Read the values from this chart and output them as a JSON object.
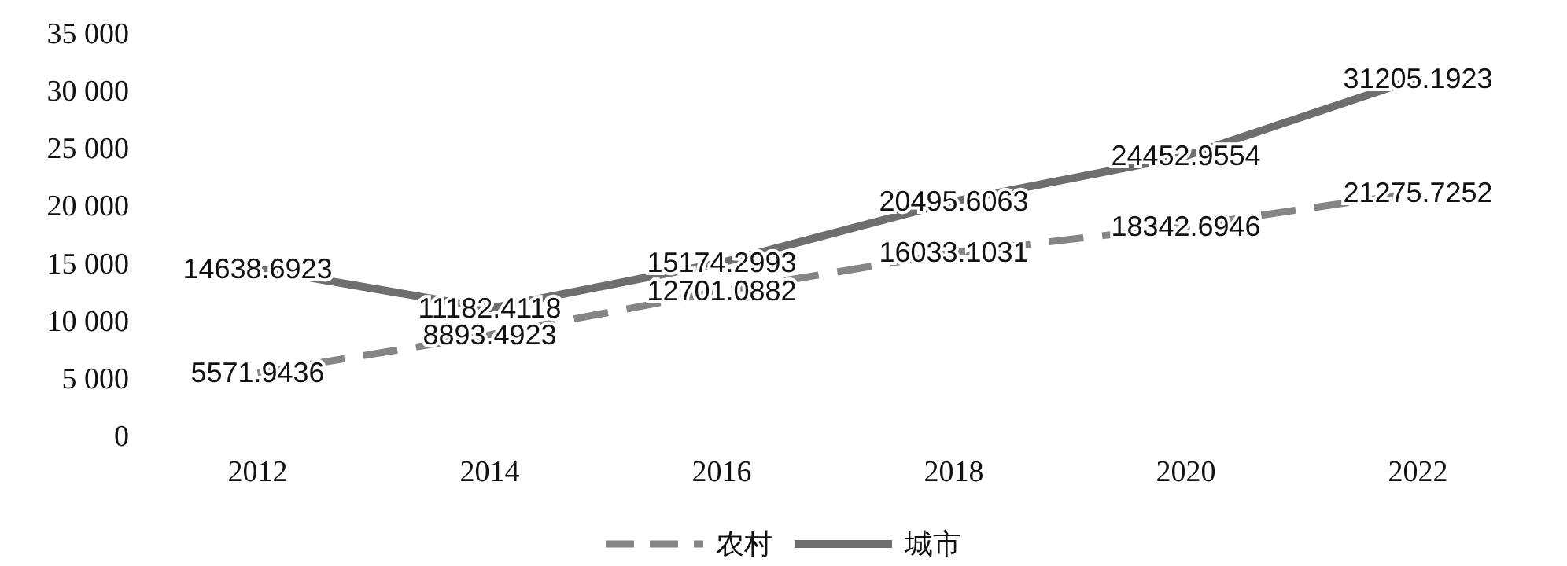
{
  "chart_data": {
    "type": "line",
    "categories": [
      "2012",
      "2014",
      "2016",
      "2018",
      "2020",
      "2022"
    ],
    "series": [
      {
        "name": "农村",
        "color": "#858585",
        "line_style": "dashed",
        "values": [
          5571.9436,
          8893.4923,
          12701.0882,
          16033.1031,
          18342.6946,
          21275.7252
        ]
      },
      {
        "name": "城市",
        "color": "#6e6e6e",
        "line_style": "solid",
        "values": [
          14638.6923,
          11182.4118,
          15174.2993,
          20495.6063,
          24452.9554,
          31205.1923
        ]
      }
    ],
    "ylim": [
      0,
      35000
    ],
    "yticks": [
      0,
      {
        "value": 5000,
        "label": "5 000"
      },
      {
        "value": 10000,
        "label": "10 000"
      },
      {
        "value": 15000,
        "label": "15 000"
      },
      {
        "value": 20000,
        "label": "20 000"
      },
      {
        "value": 25000,
        "label": "25 000"
      },
      {
        "value": 30000,
        "label": "30 000"
      },
      {
        "value": 35000,
        "label": "35 000"
      }
    ],
    "data_labels": true,
    "grid": false,
    "legend": "bottom",
    "marker": "none"
  }
}
